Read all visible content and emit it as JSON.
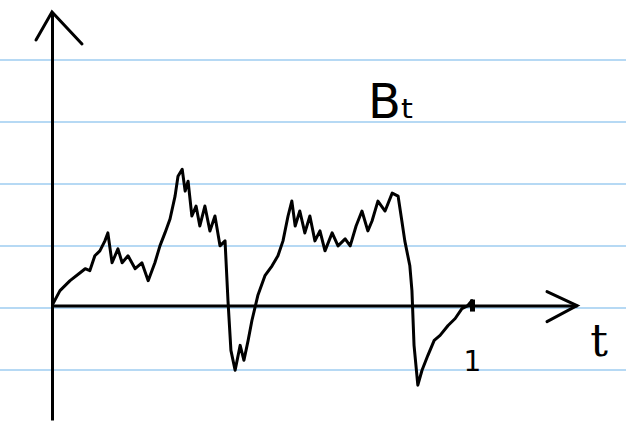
{
  "chart_data": {
    "type": "line",
    "annotations": [
      "Bₜ"
    ],
    "xlabel": "t",
    "x": [
      0,
      0.019,
      0.043,
      0.067,
      0.079,
      0.09,
      0.102,
      0.114,
      0.126,
      0.133,
      0.143,
      0.157,
      0.167,
      0.181,
      0.198,
      0.214,
      0.229,
      0.245,
      0.257,
      0.269,
      0.281,
      0.293,
      0.3,
      0.31,
      0.317,
      0.324,
      0.333,
      0.343,
      0.352,
      0.364,
      0.376,
      0.388,
      0.4,
      0.412,
      0.419,
      0.426,
      0.436,
      0.448,
      0.457,
      0.467,
      0.476,
      0.49,
      0.507,
      0.524,
      0.538,
      0.55,
      0.562,
      0.571,
      0.579,
      0.59,
      0.602,
      0.614,
      0.626,
      0.638,
      0.65,
      0.667,
      0.681,
      0.698,
      0.71,
      0.724,
      0.738,
      0.752,
      0.762,
      0.776,
      0.793,
      0.81,
      0.824,
      0.833,
      0.84,
      0.852,
      0.857,
      0.862,
      0.871,
      0.881,
      0.895,
      0.91,
      0.924,
      0.943,
      0.96,
      0.976,
      0.99,
      1.0
    ],
    "values": [
      0,
      0.15,
      0.25,
      0.33,
      0.37,
      0.35,
      0.5,
      0.55,
      0.65,
      0.73,
      0.43,
      0.57,
      0.43,
      0.5,
      0.37,
      0.43,
      0.25,
      0.43,
      0.6,
      0.73,
      0.87,
      1.1,
      1.3,
      1.37,
      1.15,
      1.25,
      0.9,
      1.0,
      0.8,
      1.0,
      0.75,
      0.9,
      0.6,
      0.65,
      0.05,
      -0.45,
      -0.65,
      -0.4,
      -0.55,
      -0.35,
      -0.15,
      0.1,
      0.3,
      0.4,
      0.5,
      0.65,
      0.9,
      1.05,
      0.8,
      0.95,
      0.73,
      0.9,
      0.65,
      0.75,
      0.55,
      0.73,
      0.6,
      0.67,
      0.6,
      0.8,
      0.95,
      0.75,
      0.85,
      1.05,
      0.95,
      1.13,
      1.1,
      0.85,
      0.65,
      0.4,
      0.15,
      -0.4,
      -0.8,
      -0.65,
      -0.5,
      -0.35,
      -0.3,
      -0.2,
      -0.13,
      -0.03,
      0,
      0.05
    ],
    "color": "#000000",
    "xlim": [
      0,
      1.25
    ],
    "ylim": [
      -1.15,
      2.95
    ],
    "xticks": [
      1
    ],
    "yticks": [],
    "tick_labels": "x",
    "grid": false
  }
}
